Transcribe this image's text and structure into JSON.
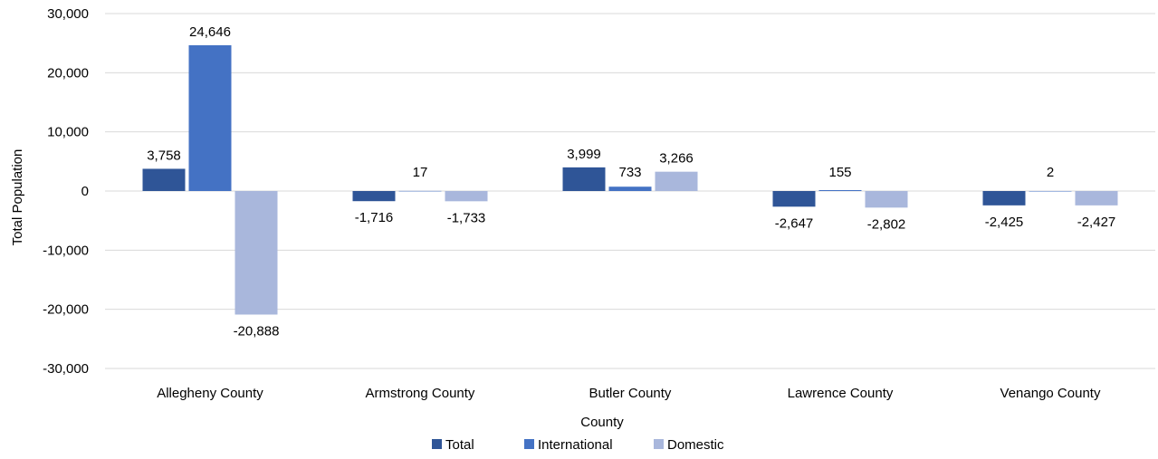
{
  "chart_data": {
    "type": "bar",
    "title": "",
    "xlabel": "County",
    "ylabel": "Total Population",
    "ylim": [
      -30000,
      30000
    ],
    "yticks": [
      30000,
      20000,
      10000,
      0,
      -10000,
      -20000,
      -30000
    ],
    "ytick_labels": [
      "30,000",
      "20,000",
      "10,000",
      "0",
      "-10,000",
      "-20,000",
      "-30,000"
    ],
    "grid": true,
    "legend_position": "bottom",
    "categories": [
      "Allegheny County",
      "Armstrong County",
      "Butler County",
      "Lawrence County",
      "Venango County"
    ],
    "series": [
      {
        "name": "Total",
        "color": "#2F5597",
        "values": [
          3758,
          -1716,
          3999,
          -2647,
          -2425
        ],
        "labels": [
          "3,758",
          "-1,716",
          "3,999",
          "-2,647",
          "-2,425"
        ]
      },
      {
        "name": "International",
        "color": "#4472C4",
        "values": [
          24646,
          17,
          733,
          155,
          2
        ],
        "labels": [
          "24,646",
          "17",
          "733",
          "155",
          "2"
        ]
      },
      {
        "name": "Domestic",
        "color": "#A9B7DC",
        "values": [
          -20888,
          -1733,
          3266,
          -2802,
          -2427
        ],
        "labels": [
          "-20,888",
          "-1,733",
          "3,266",
          "-2,802",
          "-2,427"
        ]
      }
    ]
  }
}
